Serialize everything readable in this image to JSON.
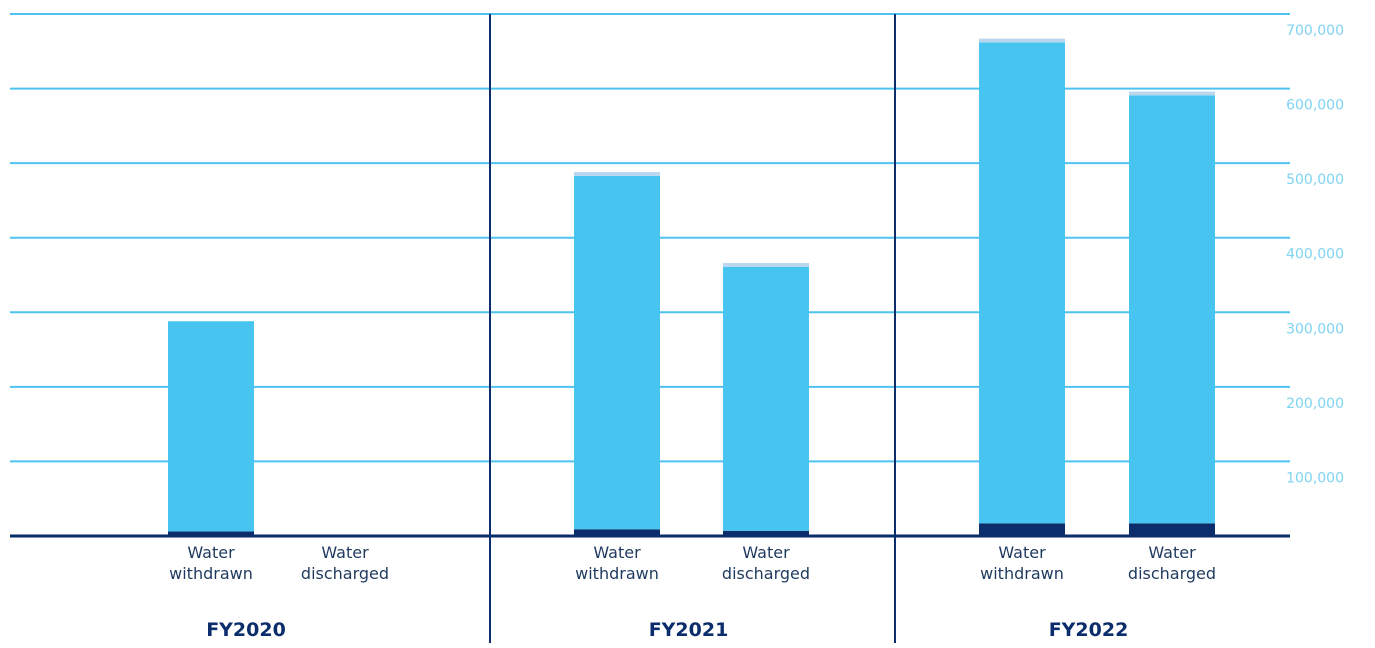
{
  "colors": {
    "grid": "#4fc3f0",
    "axis": "#0b2d6b",
    "divider": "#0b2d6b",
    "series_bottom": "#0b2d6b",
    "series_middle": "#48c4f1",
    "series_top": "#b9d6ee",
    "tick_text": "#7fd3f3",
    "label_text": "#1f3a5f",
    "year_text": "#0b2d6b"
  },
  "chart_data": {
    "type": "bar",
    "stacked": true,
    "ylim": [
      0,
      700000
    ],
    "ytick_labels": [
      "100,000",
      "200,000",
      "300,000",
      "400,000",
      "500,000",
      "600,000",
      "700,000"
    ],
    "grid": true,
    "groups": [
      {
        "label": "FY2020",
        "bars": [
          {
            "label": [
              "Water",
              "withdrawn"
            ],
            "segments": [
              6000,
              282000,
              0
            ]
          },
          {
            "label": [
              "Water",
              "discharged"
            ],
            "segments": [
              0,
              0,
              0
            ]
          }
        ]
      },
      {
        "label": "FY2021",
        "bars": [
          {
            "label": [
              "Water",
              "withdrawn"
            ],
            "segments": [
              9000,
              474000,
              5000
            ]
          },
          {
            "label": [
              "Water",
              "discharged"
            ],
            "segments": [
              7000,
              354000,
              5000
            ]
          }
        ]
      },
      {
        "label": "FY2022",
        "bars": [
          {
            "label": [
              "Water",
              "withdrawn"
            ],
            "segments": [
              17000,
              645000,
              5000
            ]
          },
          {
            "label": [
              "Water",
              "discharged"
            ],
            "segments": [
              17000,
              574000,
              5000
            ]
          }
        ]
      }
    ]
  }
}
